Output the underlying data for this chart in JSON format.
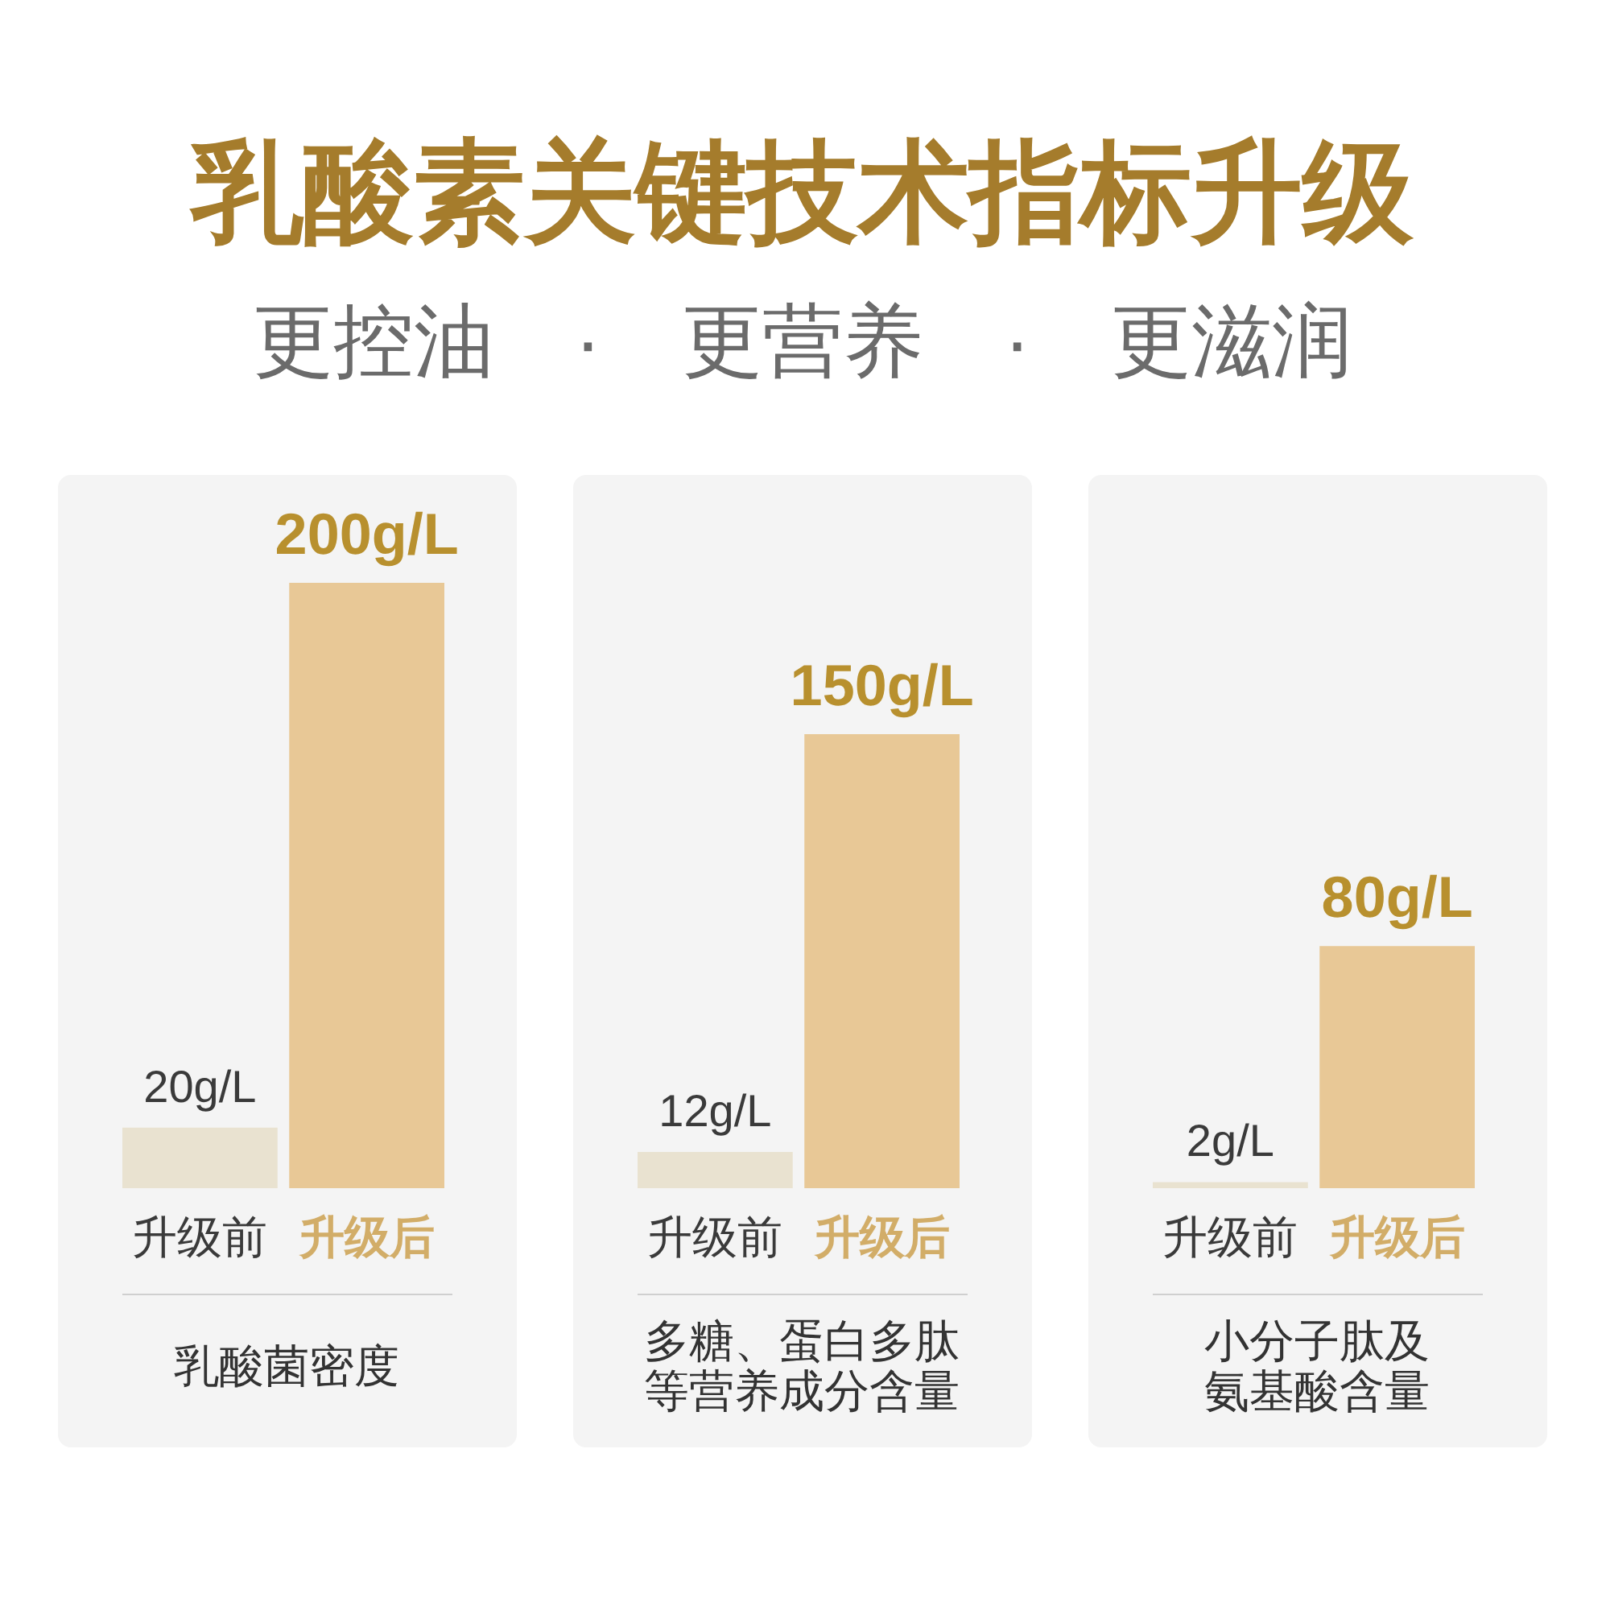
{
  "chart_data": [
    {
      "type": "bar",
      "title": "乳酸素关键技术指标升级",
      "subtitle": "更控油　·　更营养　·　更滋润",
      "categories": [
        "升级前",
        "升级后"
      ],
      "values": [
        20,
        200
      ],
      "colors": [
        "#e9e2d0",
        "#e8c896"
      ],
      "value_labels": [
        "20g/L",
        "200g/L"
      ],
      "xlabel": "乳酸菌密度"
    },
    {
      "type": "bar",
      "categories": [
        "升级前",
        "升级后"
      ],
      "values": [
        12,
        150
      ],
      "colors": [
        "#e9e2d0",
        "#e8c896"
      ],
      "value_labels": [
        "12g/L",
        "150g/L"
      ],
      "xlabel": "多糖、蛋白多肽等营养成分含量"
    },
    {
      "type": "bar",
      "categories": [
        "升级前",
        "升级后"
      ],
      "values": [
        2,
        80
      ],
      "colors": [
        "#e9e2d0",
        "#e8c896"
      ],
      "value_labels": [
        "2g/L",
        "80g/L"
      ],
      "xlabel": "小分子肽及氨基酸含量"
    }
  ]
}
